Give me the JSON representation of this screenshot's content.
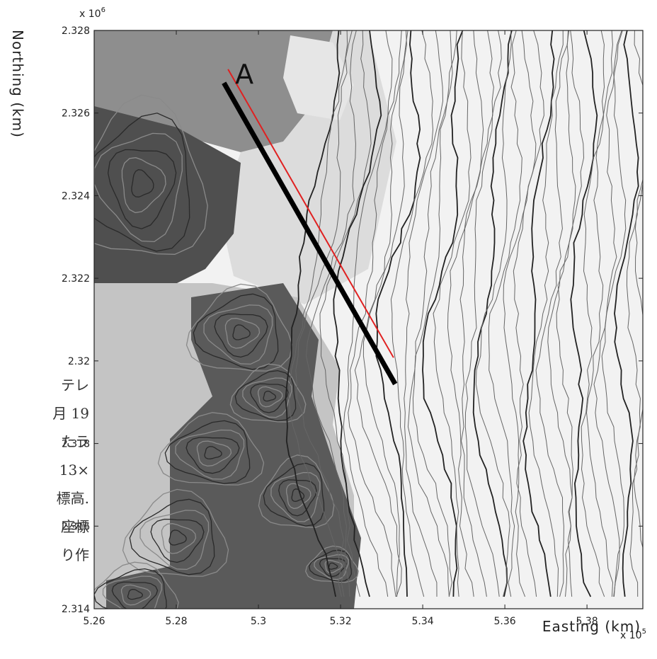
{
  "chart_data": {
    "type": "map",
    "xlabel": "Easting (km)",
    "ylabel": "Northing (km)",
    "x_multiplier": {
      "base": "x 10",
      "exponent": "5"
    },
    "y_multiplier": {
      "base": "x 10",
      "exponent": "6"
    },
    "xlim": [
      5.26,
      5.3936
    ],
    "ylim": [
      2.314,
      2.328
    ],
    "xticks": [
      5.26,
      5.28,
      5.3,
      5.32,
      5.34,
      5.36,
      5.38
    ],
    "yticks": [
      2.314,
      2.316,
      2.318,
      2.32,
      2.322,
      2.324,
      2.326,
      2.328
    ],
    "series": [
      {
        "name": "A",
        "color": "#e02020",
        "x": [
          5.2926,
          5.3329
        ],
        "values": [
          2.32706,
          2.32008
        ]
      },
      {
        "color": "#000000",
        "x": [
          5.2916,
          5.3333
        ],
        "values": [
          2.32673,
          2.31944
        ]
      }
    ]
  },
  "side_text": [
    "テレ",
    "月 19",
    "たラ",
    "13×",
    "標高.",
    "座標",
    "り作"
  ]
}
